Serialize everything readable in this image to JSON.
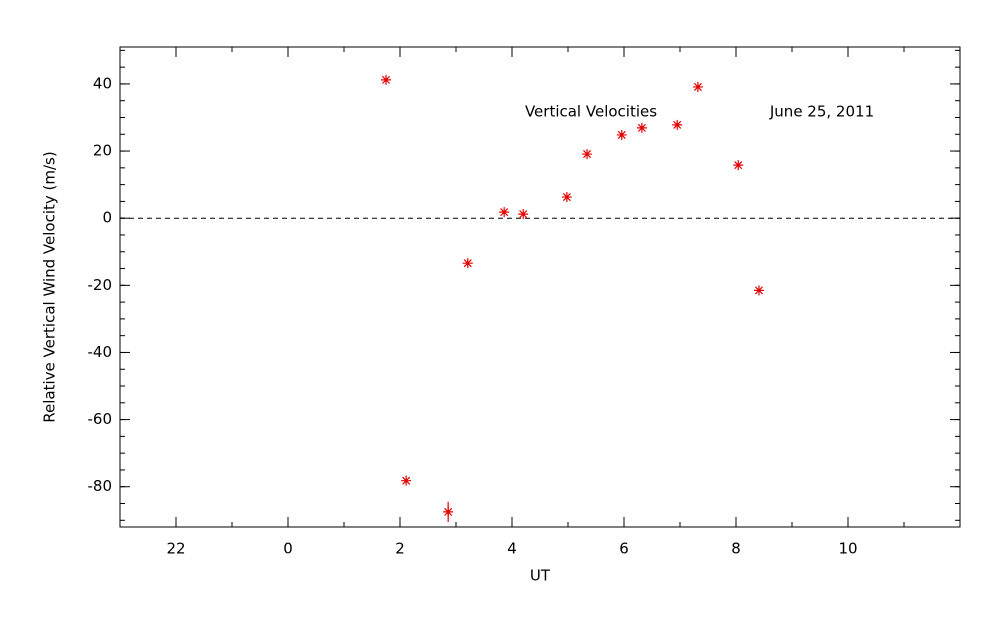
{
  "chart_data": {
    "type": "scatter",
    "x_label": "UT",
    "y_label": "Relative Vertical Wind Velocity (m/s)",
    "annotations": [
      "Vertical Velocities",
      "June 25, 2011"
    ],
    "x": [
      1.75,
      2.11,
      2.86,
      3.21,
      3.86,
      4.2,
      4.98,
      5.34,
      5.96,
      6.32,
      6.95,
      7.32,
      8.04,
      8.41
    ],
    "series": [
      {
        "color": "#e00000",
        "values": [
          41.2,
          -78.2,
          -87.5,
          -13.4,
          1.8,
          1.2,
          6.3,
          19.1,
          24.8,
          26.9,
          27.8,
          39.1,
          15.8,
          -21.5
        ],
        "errors": [
          null,
          null,
          3,
          null,
          null,
          null,
          null,
          null,
          null,
          null,
          null,
          null,
          null,
          null
        ]
      }
    ],
    "reference_line": 0,
    "xlim": [
      -3,
      12
    ],
    "xticks": [
      {
        "value": -2,
        "label": "22"
      },
      0,
      2,
      4,
      6,
      8,
      10
    ],
    "x_minor_step": 1,
    "ylim": [
      -92,
      51
    ],
    "yticks": [
      -80,
      -60,
      -40,
      -20,
      0,
      20,
      40
    ],
    "y_minor_step": 5
  }
}
